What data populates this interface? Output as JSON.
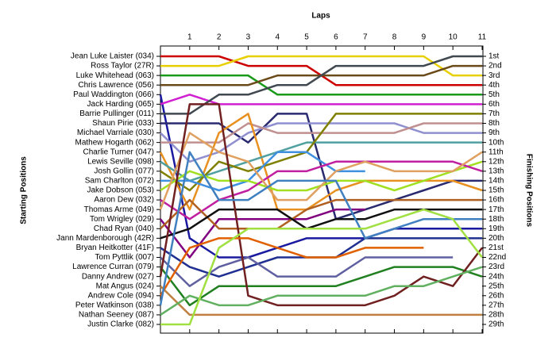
{
  "chart_data": {
    "type": "bump",
    "title": "Laps",
    "y_label": "Starting Positions",
    "y2_label": "Finishing Positions",
    "xlim": [
      0,
      11
    ],
    "xticks": [
      1,
      2,
      3,
      4,
      5,
      6,
      7,
      8,
      9,
      10,
      11
    ],
    "ylim": [
      1,
      29
    ],
    "finish_labels": [
      "1st",
      "2nd",
      "3rd",
      "4th",
      "5th",
      "6th",
      "7th",
      "8th",
      "9th",
      "10th",
      "11th",
      "12th",
      "13th",
      "14th",
      "15th",
      "16th",
      "17th",
      "18th",
      "19th",
      "20th",
      "21st",
      "22nd",
      "23rd",
      "24th",
      "25th",
      "26th",
      "27th",
      "28th",
      "29th"
    ],
    "x": [
      0,
      1,
      2,
      3,
      4,
      5,
      6,
      7,
      8,
      9,
      10,
      11
    ],
    "series": [
      {
        "name": "Jean Luke Laister (034)",
        "color": "#cc0000",
        "values": [
          1,
          1,
          1,
          2,
          2,
          2,
          4,
          4,
          4,
          4,
          4,
          4
        ]
      },
      {
        "name": "Ross Taylor (27R)",
        "color": "#e8d000",
        "values": [
          2,
          2,
          2,
          1,
          1,
          1,
          1,
          1,
          1,
          1,
          3,
          3
        ]
      },
      {
        "name": "Luke Whitehead (063)",
        "color": "#1a9a1a",
        "values": [
          3,
          3,
          3,
          3,
          5,
          5,
          5,
          5,
          5,
          5,
          5,
          5
        ]
      },
      {
        "name": "Chris Lawrence (056)",
        "color": "#6b4a1a",
        "values": [
          4,
          4,
          4,
          4,
          3,
          3,
          3,
          3,
          3,
          3,
          2,
          2
        ]
      },
      {
        "name": "Paul Waddington (066)",
        "color": "#1a1aa0",
        "values": [
          5,
          20,
          22,
          22,
          21,
          20,
          20,
          20,
          19,
          19,
          19,
          19
        ]
      },
      {
        "name": "Jack Harding (065)",
        "color": "#d020d0",
        "values": [
          6,
          5,
          6,
          6,
          6,
          6,
          6,
          6,
          6,
          6,
          6,
          6
        ]
      },
      {
        "name": "Barrie Pullinger (011)",
        "color": "#404850",
        "values": [
          7,
          7,
          5,
          5,
          4,
          4,
          2,
          2,
          2,
          2,
          1,
          1
        ]
      },
      {
        "name": "Shaun Pirie (033)",
        "color": "#2a2a70",
        "values": [
          8,
          8,
          8,
          10,
          7,
          7,
          18,
          17,
          16,
          15,
          14,
          14
        ]
      },
      {
        "name": "Michael Varriale (030)",
        "color": "#9090d0",
        "values": [
          9,
          12,
          11,
          9,
          8,
          8,
          8,
          8,
          8,
          9,
          9,
          9
        ]
      },
      {
        "name": "Mathew Hogarth (062)",
        "color": "#c09090",
        "values": [
          10,
          10,
          10,
          8,
          9,
          9,
          9,
          9,
          9,
          8,
          8,
          8
        ]
      },
      {
        "name": "Charlie Turner (047)",
        "color": "#e89020",
        "values": [
          11,
          17,
          9,
          7,
          17,
          17,
          15,
          14,
          14,
          14,
          14,
          15
        ]
      },
      {
        "name": "Lewis Seville (098)",
        "color": "#50a0a0",
        "values": [
          12,
          14,
          13,
          12,
          11,
          10,
          10,
          10,
          10,
          10,
          10,
          10
        ]
      },
      {
        "name": "Josh Gollin (077)",
        "color": "#808000",
        "values": [
          13,
          15,
          12,
          13,
          12,
          11,
          7,
          7,
          7,
          7,
          7,
          7
        ]
      },
      {
        "name": "Sam Charlton (072)",
        "color": "#4090e0",
        "values": [
          14,
          14,
          15,
          14,
          11,
          11,
          13,
          13,
          null,
          null,
          null,
          null
        ]
      },
      {
        "name": "Jake Dobson (053)",
        "color": "#a0e020",
        "values": [
          15,
          13,
          14,
          14,
          15,
          15,
          14,
          14,
          15,
          14,
          13,
          12
        ]
      },
      {
        "name": "Aaron Dew (032)",
        "color": "#c020a0",
        "values": [
          16,
          18,
          16,
          15,
          13,
          13,
          12,
          12,
          12,
          12,
          12,
          13
        ]
      },
      {
        "name": "Thomas Arme (049)",
        "color": "#e0a060",
        "values": [
          17,
          9,
          11,
          12,
          16,
          16,
          13,
          12,
          13,
          13,
          13,
          11
        ]
      },
      {
        "name": "Tom Wrigley (029)",
        "color": "#800080",
        "values": [
          18,
          22,
          18,
          18,
          18,
          18,
          17,
          17,
          null,
          null,
          null,
          null
        ]
      },
      {
        "name": "Chad Ryan (040)",
        "color": "#b06020",
        "values": [
          19,
          16,
          19,
          19,
          19,
          17,
          16,
          16,
          16,
          16,
          16,
          16
        ]
      },
      {
        "name": "Jann Mardenborough (42R)",
        "color": "#101010",
        "values": [
          20,
          19,
          17,
          17,
          17,
          19,
          18,
          18,
          17,
          17,
          17,
          17
        ]
      },
      {
        "name": "Bryan Heitkotter (41F)",
        "color": "#203090",
        "values": [
          21,
          23,
          24,
          23,
          22,
          22,
          22,
          20,
          20,
          20,
          20,
          20
        ]
      },
      {
        "name": "Tom Pyttlik (007)",
        "color": "#6060a0",
        "values": [
          22,
          25,
          23,
          22,
          24,
          24,
          24,
          22,
          22,
          22,
          22,
          null
        ]
      },
      {
        "name": "Lawrence Curran (079)",
        "color": "#208020",
        "values": [
          23,
          27,
          25,
          25,
          25,
          25,
          25,
          24,
          23,
          23,
          23,
          24
        ]
      },
      {
        "name": "Danny Andrew (027)",
        "color": "#702020",
        "values": [
          24,
          6,
          6,
          26,
          27,
          27,
          27,
          27,
          26,
          24,
          25,
          21
        ]
      },
      {
        "name": "Mat Angus (024)",
        "color": "#c08040",
        "values": [
          25,
          28,
          28,
          28,
          28,
          28,
          28,
          28,
          28,
          28,
          28,
          28
        ]
      },
      {
        "name": "Andrew Cole (094)",
        "color": "#e06000",
        "values": [
          26,
          21,
          20,
          20,
          21,
          22,
          22,
          21,
          21,
          21,
          null,
          null
        ]
      },
      {
        "name": "Peter Watkinson (038)",
        "color": "#4080c0",
        "values": [
          27,
          11,
          16,
          16,
          14,
          14,
          14,
          20,
          19,
          18,
          18,
          18
        ]
      },
      {
        "name": "Nathan Seeney (087)",
        "color": "#60b060",
        "values": [
          28,
          26,
          27,
          27,
          26,
          26,
          26,
          26,
          25,
          25,
          24,
          23
        ]
      },
      {
        "name": "Justin Clarke (082)",
        "color": "#a0e040",
        "values": [
          29,
          29,
          21,
          19,
          19,
          19,
          19,
          19,
          18,
          17,
          18,
          22
        ]
      }
    ]
  }
}
